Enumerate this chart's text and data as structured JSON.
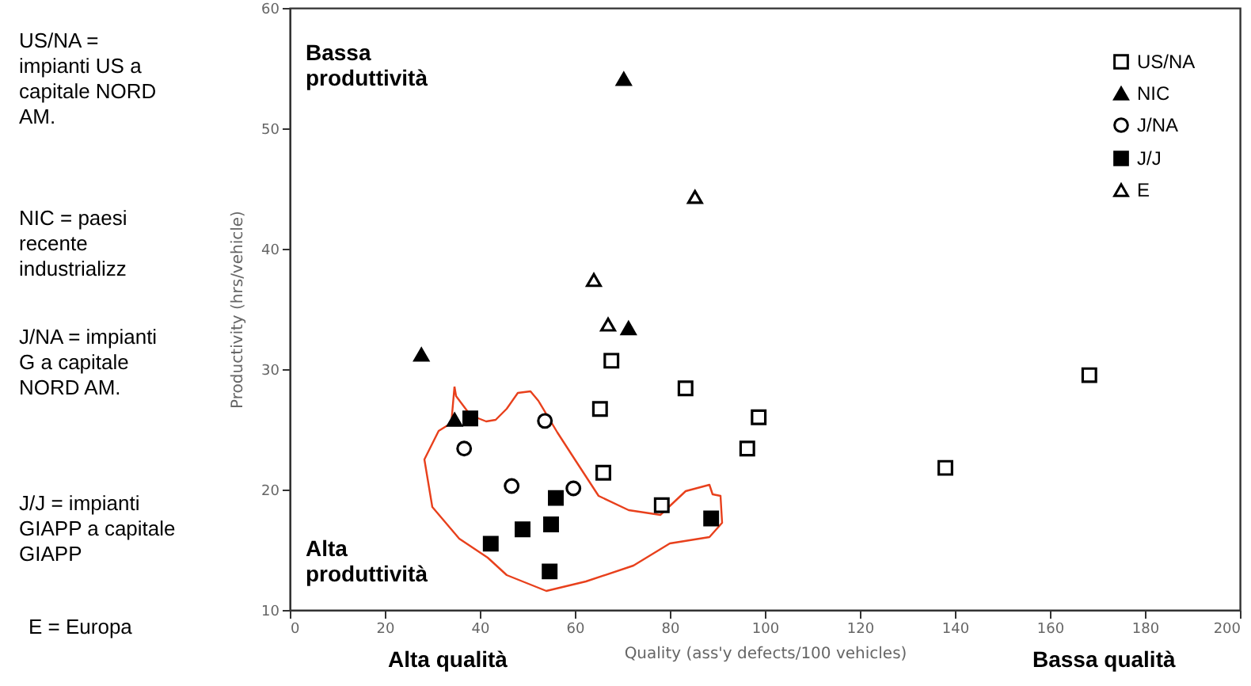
{
  "chart_data": {
    "type": "scatter",
    "xlabel": "Quality (ass'y defects/100 vehicles)",
    "ylabel": "Productivity (hrs/vehicle)",
    "xlim": [
      0,
      200
    ],
    "xticks": [
      0,
      20,
      40,
      60,
      80,
      100,
      120,
      140,
      160,
      180,
      200
    ],
    "ylim": [
      10,
      60
    ],
    "yticks": [
      10,
      20,
      30,
      40,
      50,
      60
    ],
    "legend": "top right",
    "series": [
      {
        "name": "US/NA",
        "color": "#000000",
        "marker": "square",
        "x": [
          67.7,
          65.3,
          66,
          83.3,
          78.3,
          98.7,
          96.3,
          168.3,
          138
        ],
        "values": [
          30.7,
          26.7,
          21.4,
          28.4,
          18.7,
          26.0,
          23.4,
          29.5,
          21.8
        ]
      },
      {
        "name": "NIC",
        "color": "#000000",
        "marker": "triangle",
        "x": [
          27.7,
          34.7,
          71.3,
          70.3
        ],
        "values": [
          31.2,
          25.8,
          33.4,
          54.1
        ]
      },
      {
        "name": "J/NA",
        "color": "#000000",
        "marker": "circle",
        "x": [
          36.7,
          46.7,
          53.7,
          59.7
        ],
        "values": [
          23.4,
          20.3,
          25.7,
          20.1
        ]
      },
      {
        "name": "J/J",
        "color": "#000000",
        "marker": "square",
        "x": [
          38,
          42.3,
          49,
          55,
          56,
          54.7,
          88.7
        ],
        "values": [
          25.9,
          15.5,
          16.7,
          17.1,
          19.3,
          13.2,
          17.6
        ]
      },
      {
        "name": "E",
        "color": "#000000",
        "marker": "triangle",
        "x": [
          85.3,
          64,
          67
        ],
        "values": [
          44.3,
          37.4,
          33.7
        ]
      }
    ],
    "annotations": [
      "Bassa produttività",
      "Alta produttività",
      "Alta qualità",
      "Bassa qualità",
      "US/NA = impianti US a capitale NORD AM.",
      "NIC = paesi recente industrializz",
      "J/NA = impianti G a capitale NORD AM.",
      "J/J = impianti GIAPP a capitale GIAPP",
      "E = Europa"
    ]
  }
}
